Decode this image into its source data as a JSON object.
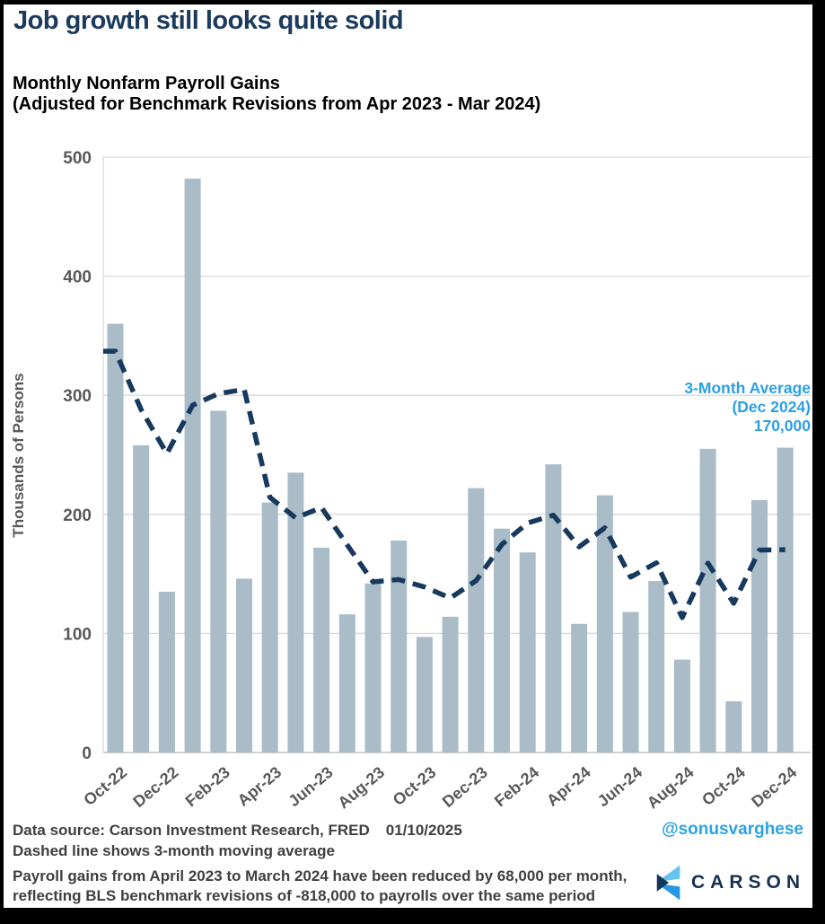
{
  "header": {
    "title": "Job growth still looks quite solid",
    "subtitle_line1": "Monthly Nonfarm Payroll Gains",
    "subtitle_line2": "(Adjusted for Benchmark Revisions from Apr 2023 - Mar 2024)"
  },
  "chart_data": {
    "type": "bar",
    "title": "Monthly Nonfarm Payroll Gains (Adjusted for Benchmark Revisions from Apr 2023 - Mar 2024)",
    "xlabel": "",
    "ylabel": "Thousands of Persons",
    "ylim": [
      0,
      500
    ],
    "yticks": [
      0,
      100,
      200,
      300,
      400,
      500
    ],
    "grid": "horizontal",
    "legend_position": "none",
    "x_tick_rotation": -40,
    "x_ticks_every": 2,
    "categories": [
      "Oct-22",
      "Nov-22",
      "Dec-22",
      "Jan-23",
      "Feb-23",
      "Mar-23",
      "Apr-23",
      "May-23",
      "Jun-23",
      "Jul-23",
      "Aug-23",
      "Sep-23",
      "Oct-23",
      "Nov-23",
      "Dec-23",
      "Jan-24",
      "Feb-24",
      "Mar-24",
      "Apr-24",
      "May-24",
      "Jun-24",
      "Jul-24",
      "Aug-24",
      "Sep-24",
      "Oct-24",
      "Nov-24",
      "Dec-24"
    ],
    "series": [
      {
        "name": "Monthly nonfarm payroll gains (thousands of persons)",
        "type": "bar",
        "values": [
          360,
          258,
          135,
          482,
          287,
          146,
          210,
          235,
          172,
          116,
          142,
          178,
          97,
          114,
          222,
          188,
          168,
          242,
          108,
          216,
          118,
          144,
          78,
          255,
          43,
          212,
          256
        ]
      },
      {
        "name": "3-month moving average",
        "type": "dashed-line",
        "values": [
          337,
          288,
          251,
          291.7,
          301.3,
          305,
          214.3,
          197,
          205.7,
          174.3,
          143.3,
          145.3,
          139,
          129.7,
          144.3,
          174.7,
          192.7,
          199.3,
          172.7,
          188.7,
          147.3,
          159.3,
          113.3,
          159,
          125.3,
          170,
          170.3
        ]
      }
    ],
    "annotation": {
      "lines": [
        "3-Month Average",
        "(Dec 2024)",
        "170,000"
      ]
    },
    "colors": {
      "bar": "#a9bcc7",
      "line": "#17395e",
      "annotation": "#2b9fe6",
      "grid": "#d9d9d9",
      "axis": "#c2c2c2",
      "tick_label": "#595959"
    }
  },
  "footer": {
    "source_label": "Data source: Carson Investment Research, FRED",
    "date": "01/10/2025",
    "note_line": "Dashed line shows 3-month moving average",
    "handle": "@sonusvarghese",
    "handle_color": "#2ba2e8",
    "disclaimer_line1": "Payroll gains from April 2023 to March 2024 have been reduced by 68,000 per month,",
    "disclaimer_line2": "reflecting BLS benchmark revisions of -818,000 to payrolls over the same period"
  },
  "logo": {
    "wordmark": "CARSON",
    "colors": {
      "light": "#64c3f0",
      "mid": "#2897e4",
      "dark": "#14355c",
      "text": "#16304f"
    }
  }
}
